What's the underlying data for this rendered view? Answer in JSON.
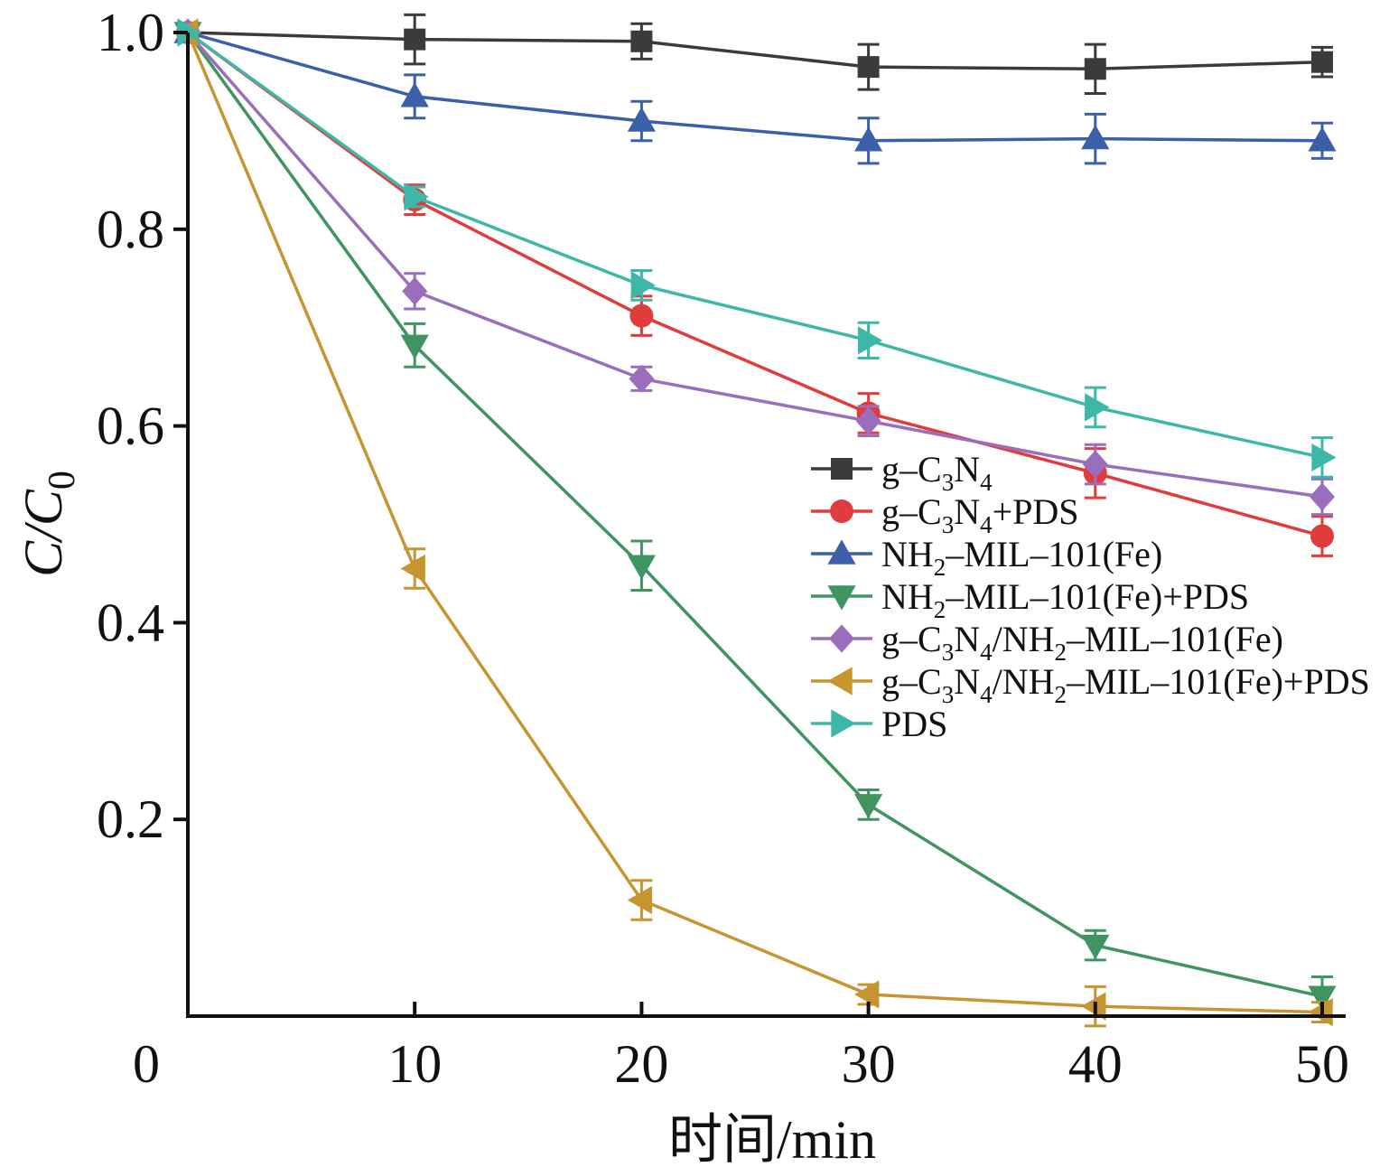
{
  "chart_data": {
    "type": "line",
    "xlabel": "时间/min",
    "ylabel": {
      "main": "C/C",
      "sub": "0"
    },
    "xlim": [
      0,
      50
    ],
    "ylim": [
      0,
      1.0
    ],
    "x_ticks": [
      0,
      10,
      20,
      30,
      40,
      50
    ],
    "x_tick_labels": [
      "0",
      "10",
      "20",
      "30",
      "40",
      "50"
    ],
    "y_ticks": [
      0.2,
      0.4,
      0.6,
      0.8,
      1.0
    ],
    "y_tick_labels": [
      "0.2",
      "0.4",
      "0.6",
      "0.8",
      "1.0"
    ],
    "grid": false,
    "legend_position": "right-middle",
    "x": [
      0,
      10,
      20,
      30,
      40,
      50
    ],
    "series": [
      {
        "name": "g–C3N4",
        "label_parts": [
          [
            "g–C",
            ""
          ],
          [
            "3",
            "sub"
          ],
          [
            "N",
            ""
          ],
          [
            "4",
            "sub"
          ]
        ],
        "marker": "square",
        "color": "#3d3a3a",
        "values": [
          1.0,
          0.993,
          0.991,
          0.965,
          0.963,
          0.97
        ],
        "errors": [
          0.0,
          0.025,
          0.018,
          0.023,
          0.025,
          0.015
        ]
      },
      {
        "name": "g–C3N4+PDS",
        "label_parts": [
          [
            "g–C",
            ""
          ],
          [
            "3",
            "sub"
          ],
          [
            "N",
            ""
          ],
          [
            "4",
            "sub"
          ],
          [
            "+PDS",
            ""
          ]
        ],
        "marker": "circle",
        "color": "#e03c3c",
        "values": [
          1.0,
          0.83,
          0.712,
          0.613,
          0.552,
          0.488
        ],
        "errors": [
          0.0,
          0.015,
          0.02,
          0.02,
          0.025,
          0.02
        ]
      },
      {
        "name": "NH2–MIL–101(Fe)",
        "label_parts": [
          [
            "NH",
            ""
          ],
          [
            "2",
            "sub"
          ],
          [
            "–MIL–101(Fe)",
            ""
          ]
        ],
        "marker": "triangle-up",
        "color": "#3b5fa8",
        "values": [
          1.0,
          0.935,
          0.91,
          0.89,
          0.892,
          0.89
        ],
        "errors": [
          0.0,
          0.022,
          0.02,
          0.023,
          0.025,
          0.018
        ]
      },
      {
        "name": "NH2–MIL–101(Fe)+PDS",
        "label_parts": [
          [
            "NH",
            ""
          ],
          [
            "2",
            "sub"
          ],
          [
            "–MIL–101(Fe)+PDS",
            ""
          ]
        ],
        "marker": "triangle-down",
        "color": "#3f9460",
        "values": [
          1.0,
          0.682,
          0.458,
          0.215,
          0.072,
          0.02
        ],
        "errors": [
          0.0,
          0.022,
          0.025,
          0.015,
          0.015,
          0.02
        ]
      },
      {
        "name": "g–C3N4/NH2–MIL–101(Fe)",
        "label_parts": [
          [
            "g–C",
            ""
          ],
          [
            "3",
            "sub"
          ],
          [
            "N",
            ""
          ],
          [
            "4",
            "sub"
          ],
          [
            "/NH",
            ""
          ],
          [
            "2",
            "sub"
          ],
          [
            "–MIL–101(Fe)",
            ""
          ]
        ],
        "marker": "diamond",
        "color": "#9a6ebd",
        "values": [
          1.0,
          0.737,
          0.648,
          0.605,
          0.561,
          0.528
        ],
        "errors": [
          0.0,
          0.018,
          0.012,
          0.015,
          0.02,
          0.018
        ]
      },
      {
        "name": "g–C3N4/NH2–MIL–101(Fe)+PDS",
        "label_parts": [
          [
            "g–C",
            ""
          ],
          [
            "3",
            "sub"
          ],
          [
            "N",
            ""
          ],
          [
            "4",
            "sub"
          ],
          [
            "/NH",
            ""
          ],
          [
            "2",
            "sub"
          ],
          [
            "–MIL–101(Fe)+PDS",
            ""
          ]
        ],
        "marker": "triangle-left",
        "color": "#c79530",
        "values": [
          1.0,
          0.455,
          0.118,
          0.022,
          0.01,
          0.004
        ],
        "errors": [
          0.0,
          0.02,
          0.02,
          0.01,
          0.02,
          0.01
        ]
      },
      {
        "name": "PDS",
        "label_parts": [
          [
            "PDS",
            ""
          ]
        ],
        "marker": "triangle-right",
        "color": "#3db8a8",
        "values": [
          1.0,
          0.833,
          0.743,
          0.687,
          0.619,
          0.568
        ],
        "errors": [
          0.0,
          0.01,
          0.015,
          0.018,
          0.02,
          0.02
        ]
      }
    ]
  }
}
